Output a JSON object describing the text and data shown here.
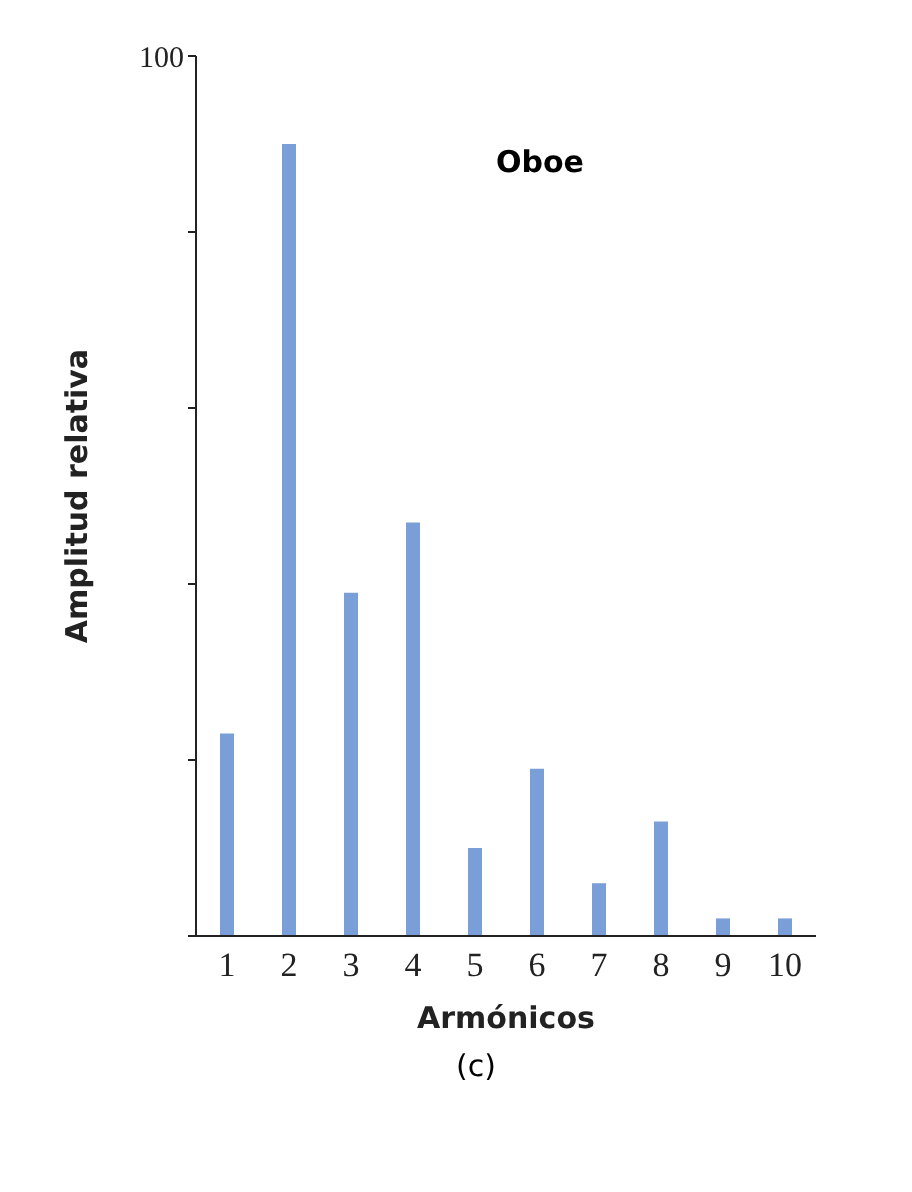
{
  "chart_data": {
    "type": "bar",
    "title": "Oboe",
    "xlabel": "Armónicos",
    "ylabel": "Amplitud relativa",
    "categories": [
      "1",
      "2",
      "3",
      "4",
      "5",
      "6",
      "7",
      "8",
      "9",
      "10"
    ],
    "values": [
      23,
      90,
      39,
      47,
      10,
      19,
      6,
      13,
      2,
      2
    ],
    "color": "#7a9fd8",
    "ylim": [
      0,
      100
    ],
    "yticks": [
      {
        "value": 0,
        "label": null
      },
      {
        "value": 20,
        "label": null
      },
      {
        "value": 40,
        "label": null
      },
      {
        "value": 60,
        "label": null
      },
      {
        "value": 80,
        "label": null
      },
      100
    ],
    "annotations": [
      "(c)"
    ],
    "grid": false
  }
}
